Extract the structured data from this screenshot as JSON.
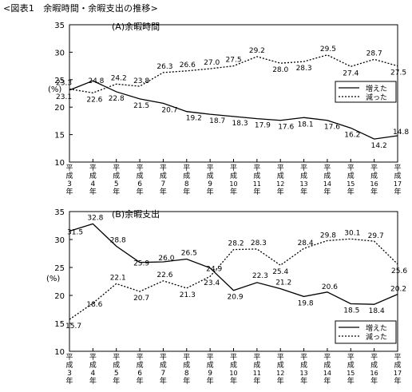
{
  "figure_title": "<図表1　余暇時間・余暇支出の推移>",
  "chart_data": [
    {
      "type": "line",
      "title": "(A)余暇時間",
      "ylabel": "(%)",
      "ylim": [
        10,
        35
      ],
      "yticks": [
        10,
        15,
        20,
        25,
        30,
        35
      ],
      "categories": [
        "平成3年",
        "平成4年",
        "平成5年",
        "平成6年",
        "平成7年",
        "平成8年",
        "平成9年",
        "平成10年",
        "平成11年",
        "平成12年",
        "平成13年",
        "平成14年",
        "平成15年",
        "平成16年",
        "平成17年"
      ],
      "tick_labels": [
        [
          "平",
          "成",
          "3",
          "年"
        ],
        [
          "平",
          "成",
          "4",
          "年"
        ],
        [
          "平",
          "成",
          "5",
          "年"
        ],
        [
          "平",
          "成",
          "6",
          "年"
        ],
        [
          "平",
          "成",
          "7",
          "年"
        ],
        [
          "平",
          "成",
          "8",
          "年"
        ],
        [
          "平",
          "成",
          "9",
          "年"
        ],
        [
          "平",
          "成",
          "10",
          "年"
        ],
        [
          "平",
          "成",
          "11",
          "年"
        ],
        [
          "平",
          "成",
          "12",
          "年"
        ],
        [
          "平",
          "成",
          "13",
          "年"
        ],
        [
          "平",
          "成",
          "14",
          "年"
        ],
        [
          "平",
          "成",
          "15",
          "年"
        ],
        [
          "平",
          "成",
          "16",
          "年"
        ],
        [
          "平",
          "成",
          "17",
          "年"
        ]
      ],
      "legend_position": "right",
      "series": [
        {
          "name": "増えた",
          "style": "solid",
          "color": "#000000",
          "values": [
            23.1,
            24.8,
            22.8,
            21.5,
            20.7,
            19.2,
            18.7,
            18.3,
            17.9,
            17.6,
            18.1,
            17.6,
            16.2,
            14.2,
            14.8
          ]
        },
        {
          "name": "減った",
          "style": "dotted",
          "color": "#000000",
          "values": [
            23.3,
            22.6,
            24.2,
            23.8,
            26.3,
            26.6,
            27.0,
            27.5,
            29.2,
            28.0,
            28.3,
            29.5,
            27.4,
            28.7,
            27.5
          ]
        }
      ]
    },
    {
      "type": "line",
      "title": "(B)余暇支出",
      "ylabel": "(%)",
      "ylim": [
        10,
        35
      ],
      "yticks": [
        10,
        15,
        20,
        25,
        30,
        35
      ],
      "categories": [
        "平成3年",
        "平成4年",
        "平成5年",
        "平成6年",
        "平成7年",
        "平成8年",
        "平成9年",
        "平成10年",
        "平成11年",
        "平成12年",
        "平成13年",
        "平成14年",
        "平成15年",
        "平成16年",
        "平成17年"
      ],
      "tick_labels": [
        [
          "平",
          "成",
          "3",
          "年"
        ],
        [
          "平",
          "成",
          "4",
          "年"
        ],
        [
          "平",
          "成",
          "5",
          "年"
        ],
        [
          "平",
          "成",
          "6",
          "年"
        ],
        [
          "平",
          "成",
          "7",
          "年"
        ],
        [
          "平",
          "成",
          "8",
          "年"
        ],
        [
          "平",
          "成",
          "9",
          "年"
        ],
        [
          "平",
          "成",
          "10",
          "年"
        ],
        [
          "平",
          "成",
          "11",
          "年"
        ],
        [
          "平",
          "成",
          "12",
          "年"
        ],
        [
          "平",
          "成",
          "13",
          "年"
        ],
        [
          "平",
          "成",
          "14",
          "年"
        ],
        [
          "平",
          "成",
          "15",
          "年"
        ],
        [
          "平",
          "成",
          "16",
          "年"
        ],
        [
          "平",
          "成",
          "17",
          "年"
        ]
      ],
      "legend_position": "bottom-right",
      "series": [
        {
          "name": "増えた",
          "style": "solid",
          "color": "#000000",
          "values": [
            31.5,
            32.8,
            28.8,
            25.9,
            26.0,
            26.5,
            24.9,
            20.9,
            22.3,
            21.2,
            19.8,
            20.6,
            18.5,
            18.4,
            20.2
          ]
        },
        {
          "name": "減った",
          "style": "dotted",
          "color": "#000000",
          "values": [
            15.7,
            18.6,
            22.1,
            20.7,
            22.6,
            21.3,
            23.4,
            28.2,
            28.3,
            25.4,
            28.4,
            29.8,
            30.1,
            29.7,
            25.6
          ]
        }
      ]
    }
  ]
}
